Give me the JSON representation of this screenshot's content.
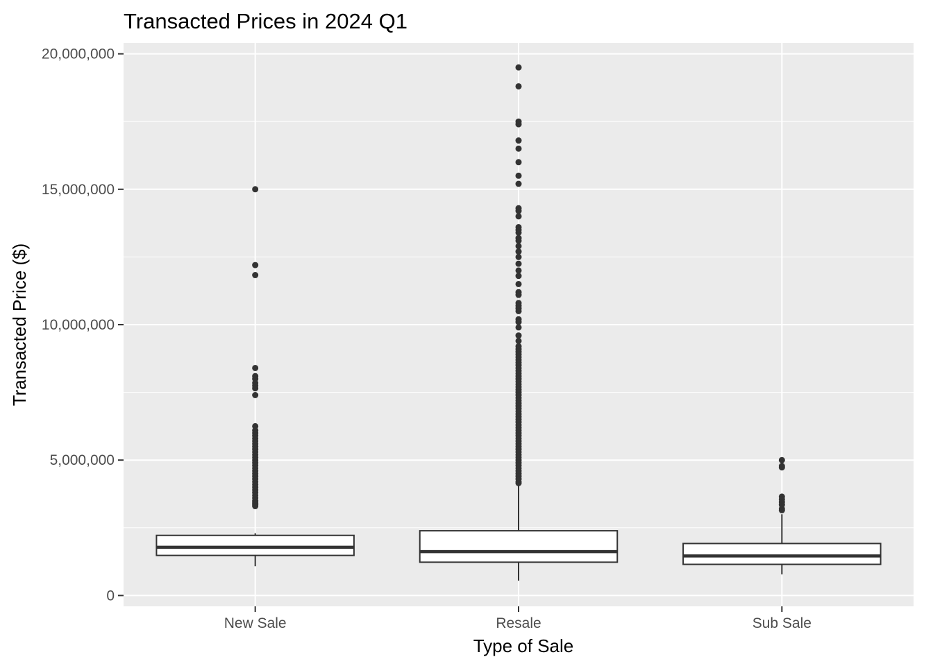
{
  "chart_data": {
    "type": "boxplot",
    "title": "Transacted Prices in 2024 Q1",
    "xlabel": "Type of Sale",
    "ylabel": "Transacted Price ($)",
    "ylim": [
      -400000,
      20400000
    ],
    "y_ticks": [
      {
        "value": 0,
        "label": "0"
      },
      {
        "value": 5000000,
        "label": "5,000,000"
      },
      {
        "value": 10000000,
        "label": "10,000,000"
      },
      {
        "value": 15000000,
        "label": "15,000,000"
      },
      {
        "value": 20000000,
        "label": "20,000,000"
      }
    ],
    "categories": [
      "New Sale",
      "Resale",
      "Sub Sale"
    ],
    "grid": true,
    "colors": {
      "panel": "#ebebeb",
      "grid": "#ffffff",
      "box_fill": "#ffffff",
      "box_line": "#333333",
      "outlier": "#333333"
    },
    "boxes": [
      {
        "category": "New Sale",
        "whisker_low": 1080000,
        "q1": 1480000,
        "median": 1780000,
        "q3": 2220000,
        "whisker_high": 2300000,
        "outliers": [
          15000000,
          12200000,
          11830000,
          8400000,
          8100000,
          8000000,
          7850000,
          7750000,
          7650000,
          7400000,
          6250000,
          6100000,
          6000000,
          5900000,
          5800000,
          5700000,
          5600000,
          5500000,
          5400000,
          5300000,
          5200000,
          5100000,
          5000000,
          4900000,
          4800000,
          4700000,
          4600000,
          4500000,
          4400000,
          4300000,
          4200000,
          4100000,
          4000000,
          3900000,
          3800000,
          3700000,
          3600000,
          3500000,
          3450000,
          3400000,
          3350000,
          3300000
        ]
      },
      {
        "category": "Resale",
        "whisker_low": 550000,
        "q1": 1230000,
        "median": 1620000,
        "q3": 2390000,
        "whisker_high": 4100000,
        "outliers": [
          19500000,
          18800000,
          17500000,
          17400000,
          16800000,
          16500000,
          16000000,
          15500000,
          15200000,
          14300000,
          14200000,
          14000000,
          13600000,
          13500000,
          13400000,
          13200000,
          13100000,
          12900000,
          12700000,
          12500000,
          12250000,
          12000000,
          11800000,
          11500000,
          11200000,
          11100000,
          10800000,
          10700000,
          10600000,
          10500000,
          10200000,
          10100000,
          9900000,
          9600000,
          9400000,
          9200000,
          9100000,
          9000000,
          8900000,
          8800000,
          8700000,
          8600000,
          8500000,
          8400000,
          8300000,
          8200000,
          8100000,
          8000000,
          7900000,
          7800000,
          7700000,
          7600000,
          7500000,
          7400000,
          7300000,
          7200000,
          7100000,
          7000000,
          6900000,
          6800000,
          6700000,
          6600000,
          6500000,
          6400000,
          6300000,
          6200000,
          6100000,
          6000000,
          5900000,
          5800000,
          5700000,
          5600000,
          5500000,
          5400000,
          5300000,
          5200000,
          5100000,
          5000000,
          4900000,
          4800000,
          4700000,
          4600000,
          4500000,
          4400000,
          4300000,
          4200000,
          4150000
        ]
      },
      {
        "category": "Sub Sale",
        "whisker_low": 780000,
        "q1": 1150000,
        "median": 1460000,
        "q3": 1920000,
        "whisker_high": 3000000,
        "outliers": [
          5000000,
          4780000,
          4730000,
          3650000,
          3550000,
          3450000,
          3350000,
          3200000,
          3150000
        ]
      }
    ]
  }
}
